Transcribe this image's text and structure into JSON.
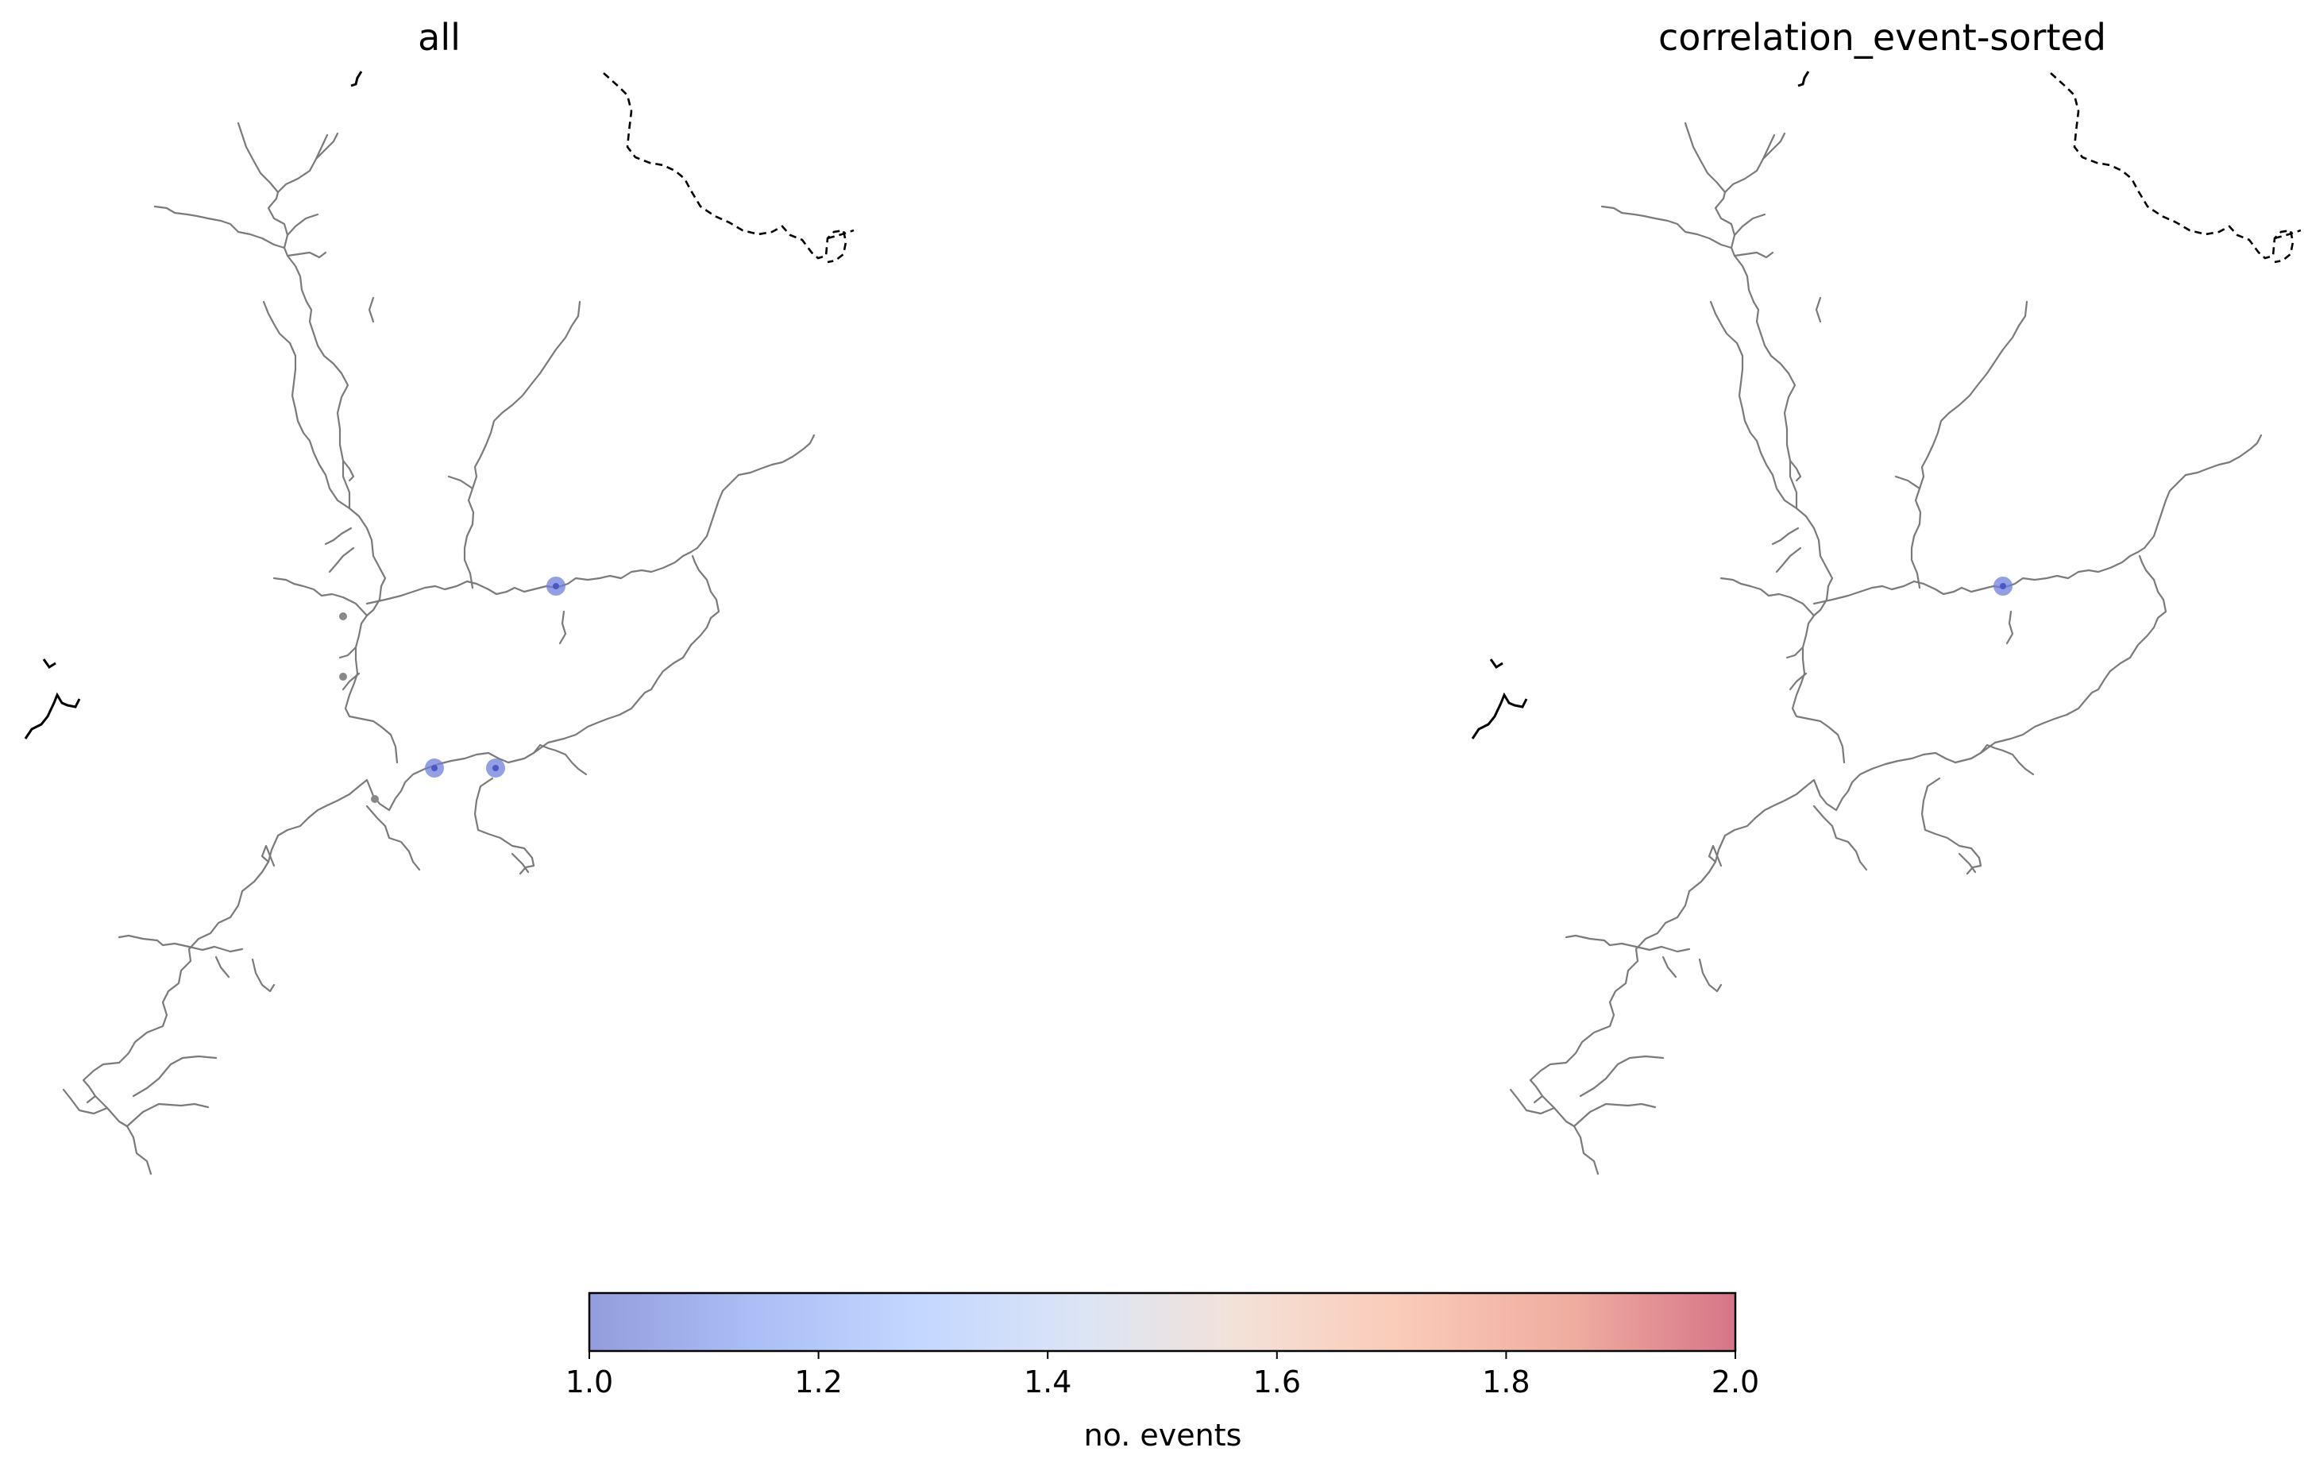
{
  "panels": [
    {
      "id": "all",
      "title": "all",
      "markers": [
        {
          "name": "marker-upper-tributary",
          "value": 1.0
        },
        {
          "name": "marker-confluence-west",
          "value": 1.0
        },
        {
          "name": "marker-confluence-east",
          "value": 1.0
        }
      ]
    },
    {
      "id": "correlation_event-sorted",
      "title": "correlation_event-sorted",
      "markers": [
        {
          "name": "marker-upper-tributary",
          "value": 1.0
        }
      ]
    }
  ],
  "colorbar": {
    "label": "no. events",
    "min": 1.0,
    "max": 2.0,
    "ticks": [
      "1.0",
      "1.2",
      "1.4",
      "1.6",
      "1.8",
      "2.0"
    ],
    "colormap": "coolwarm",
    "alpha": 0.6,
    "stops": [
      "#3b4cc0",
      "#6788ee",
      "#9abbff",
      "#c9d7f0",
      "#edd1c2",
      "#f7a889",
      "#e26952",
      "#b40426"
    ]
  },
  "colors": {
    "river": "#7a7a7a",
    "marker_fill": "#6f7fd9",
    "marker_center": "#4a57c4",
    "border": "#000000"
  }
}
